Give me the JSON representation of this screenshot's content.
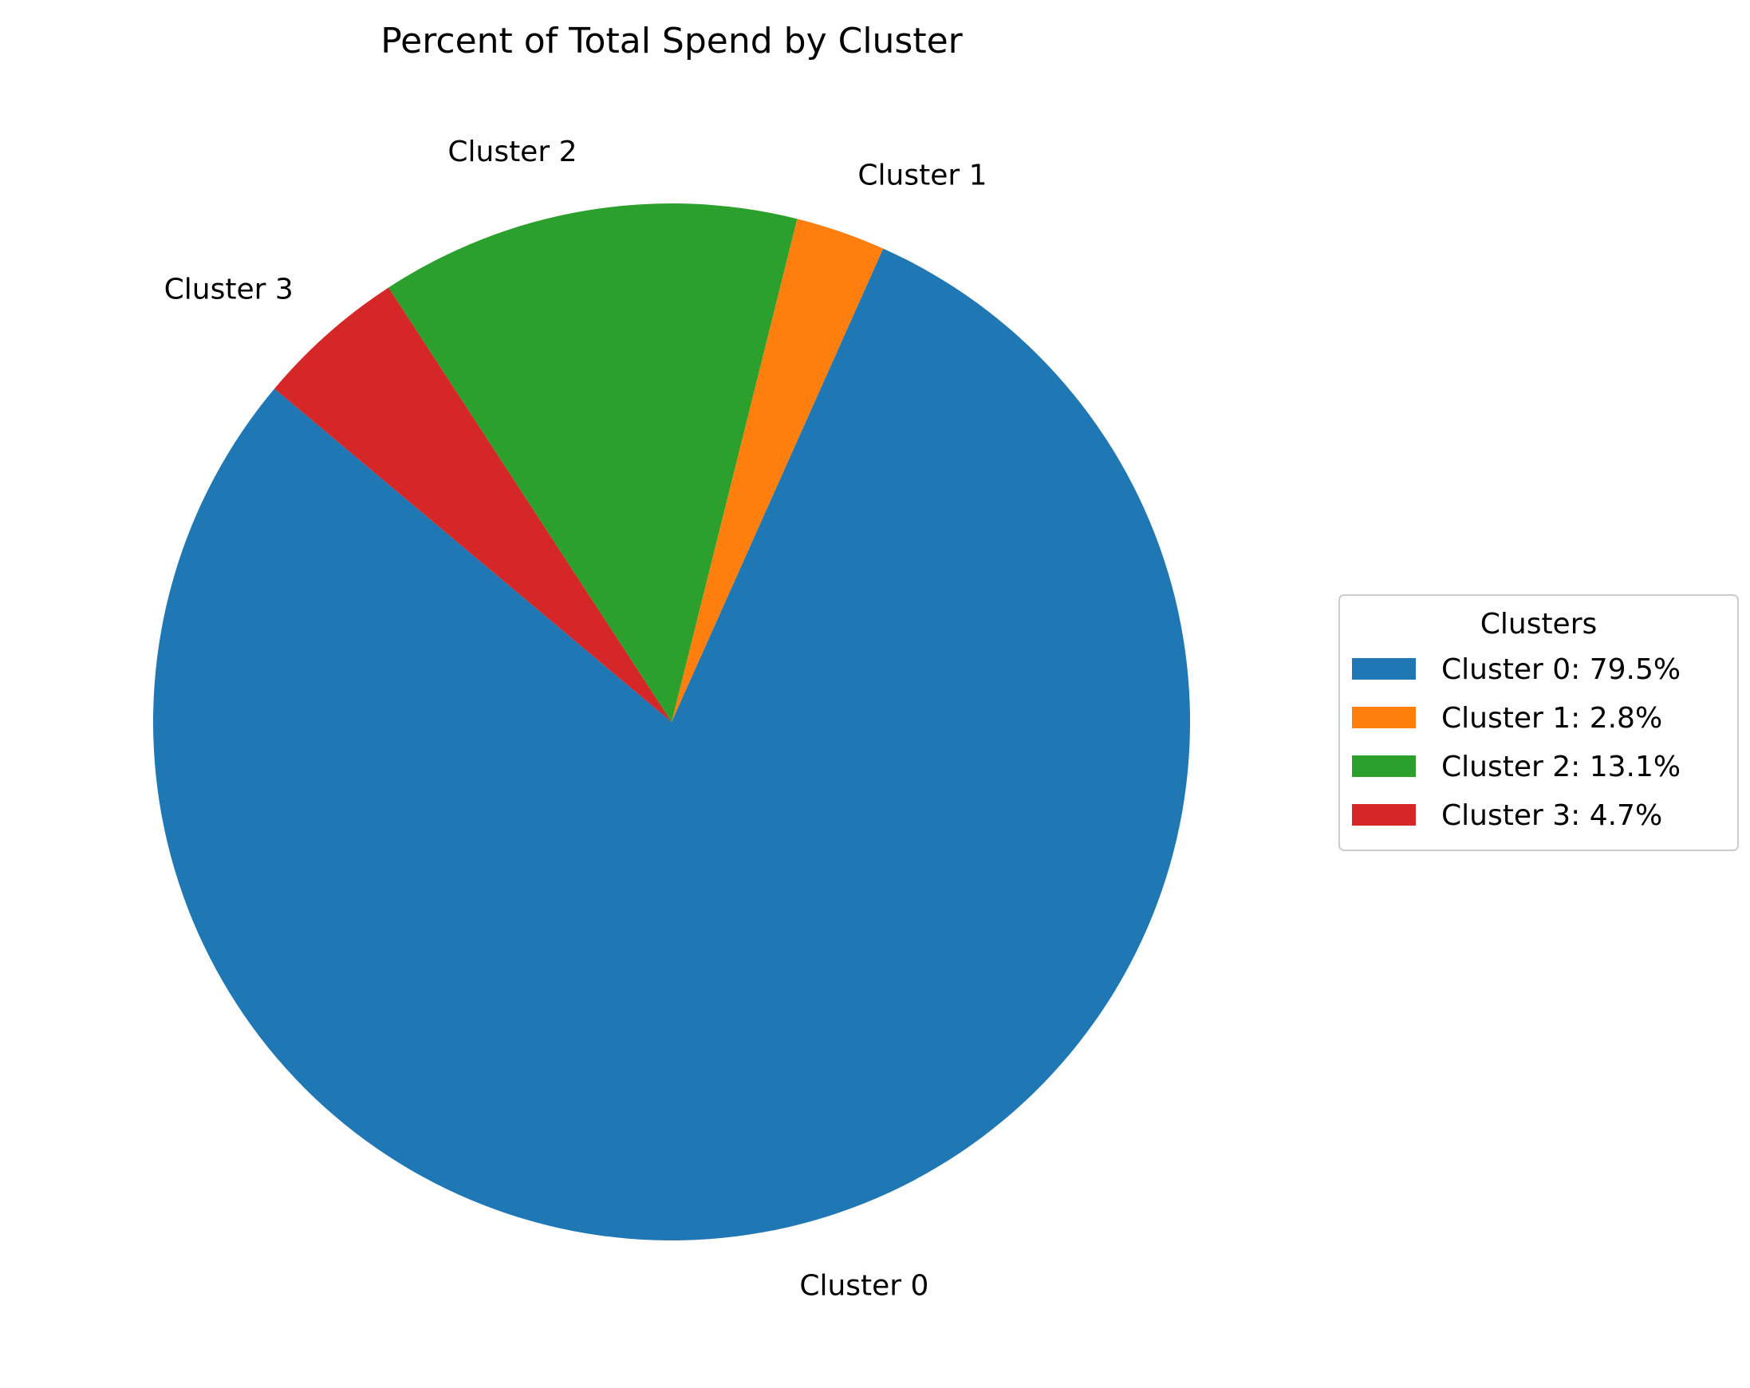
{
  "chart_data": {
    "type": "pie",
    "title": "Percent of Total Spend by Cluster",
    "categories": [
      "Cluster 0",
      "Cluster 1",
      "Cluster 2",
      "Cluster 3"
    ],
    "values": [
      79.5,
      2.8,
      13.1,
      4.7
    ],
    "colors": [
      "#1f77b4",
      "#ff7f0e",
      "#2ca02c",
      "#d62728"
    ],
    "legend": {
      "title": "Clusters",
      "placement": "center-right",
      "entries": [
        "Cluster 0: 79.5%",
        "Cluster 1: 2.8%",
        "Cluster 2: 13.1%",
        "Cluster 3: 4.7%"
      ]
    }
  }
}
